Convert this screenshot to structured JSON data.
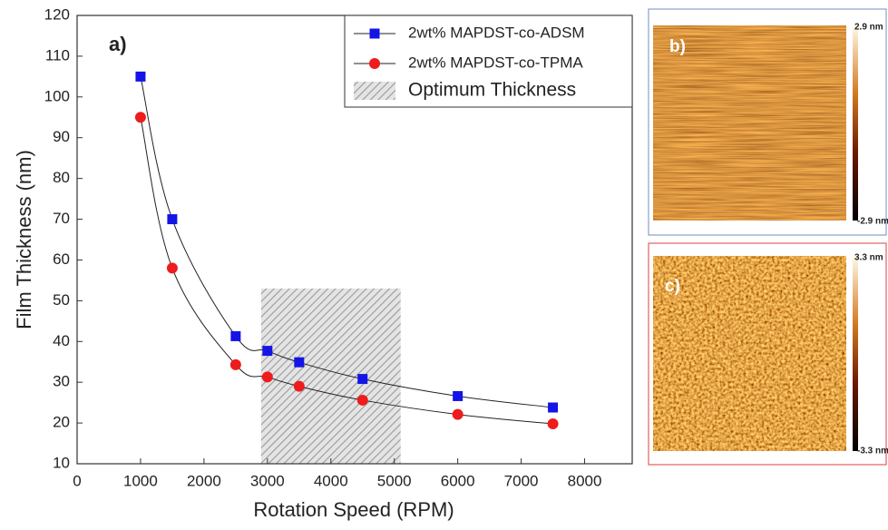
{
  "chart_data": {
    "type": "line",
    "annotation": "a)",
    "x_label": "Rotation Speed  (RPM)",
    "y_label": "Film Thickness (nm)",
    "xlim": [
      0,
      8750
    ],
    "ylim": [
      10,
      120
    ],
    "xticks": [
      0,
      1000,
      2000,
      3000,
      4000,
      5000,
      6000,
      7000,
      8000
    ],
    "yticks": [
      10,
      20,
      30,
      40,
      50,
      60,
      70,
      80,
      90,
      100,
      110,
      120
    ],
    "x": [
      1000,
      1500,
      2500,
      3000,
      3500,
      4500,
      6000,
      7500
    ],
    "series": [
      {
        "name": "2wt% MAPDST-co-ADSM",
        "color": "#1414e6",
        "marker": "square",
        "values": [
          105,
          70,
          41.3,
          37.7,
          34.9,
          30.8,
          26.6,
          23.8
        ]
      },
      {
        "name": "2wt% MAPDST-co-TPMA",
        "color": "#ee1c1c",
        "marker": "circle",
        "values": [
          95,
          58,
          34.3,
          31.3,
          29,
          25.6,
          22.1,
          19.8
        ]
      }
    ],
    "region": {
      "name": "Optimum Thickness",
      "x": [
        2900,
        5100
      ],
      "y": [
        10,
        53
      ]
    },
    "legend": "upper right"
  },
  "panels": [
    {
      "label": "b)",
      "scale_max": "2.9 nm",
      "scale_min": "-2.9 nm",
      "border": "#6f8fc0"
    },
    {
      "label": "c)",
      "scale_max": "3.3 nm",
      "scale_min": "-3.3 nm",
      "border": "#d84040"
    }
  ]
}
